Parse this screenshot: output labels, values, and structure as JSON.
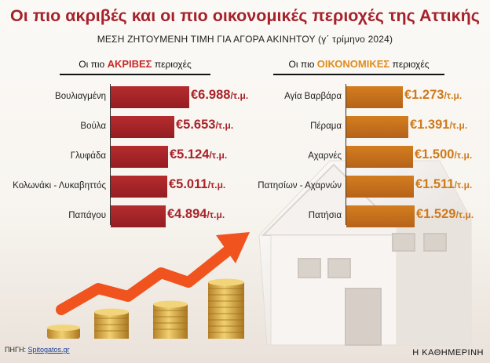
{
  "title": "Οι πιο ακριβές και οι πιο οικονομικές περιοχές της Αττικής",
  "subtitle": "ΜΕΣΗ ΖΗΤΟΥΜΕΝΗ ΤΙΜΗ ΓΙΑ ΑΓΟΡΑ ΑΚΙΝΗΤΟΥ (γ΄ τρίμηνο 2024)",
  "left_header": {
    "prefix": "Οι πιο ",
    "highlight": "ΑΚΡΙΒΕΣ",
    "suffix": " περιοχές"
  },
  "right_header": {
    "prefix": "Οι πιο ",
    "highlight": "ΟΙΚΟΝΟΜΙΚΕΣ",
    "suffix": " περιοχές"
  },
  "unit": "/τ.μ.",
  "footer": {
    "source_label": "ΠΗΓΗ: ",
    "source_link": "Spitogatos.gr",
    "brand": "Η ΚΑΘΗΜΕΡΙΝΗ"
  },
  "colors": {
    "red": "#a5222b",
    "orange": "#d47d1f",
    "arrow": "#f0531e"
  },
  "illustration": [
    "coin-stacks",
    "growth-arrow",
    "house"
  ],
  "chart_data": [
    {
      "type": "bar",
      "orientation": "horizontal",
      "categories": [
        "Βουλιαγμένη",
        "Βούλα",
        "Γλυφάδα",
        "Κολωνάκι - Λυκαβηττός",
        "Παπάγου"
      ],
      "values": [
        6988,
        5653,
        5124,
        5011,
        4894
      ],
      "labels": [
        "€6.988",
        "€5.653",
        "€5.124",
        "€5.011",
        "€4.894"
      ],
      "xlim": [
        0,
        7000
      ],
      "color": "#a5222b"
    },
    {
      "type": "bar",
      "orientation": "horizontal",
      "categories": [
        "Αγία Βαρβάρα",
        "Πέραμα",
        "Αχαρνές",
        "Πατησίων - Αχαρνών",
        "Πατήσια"
      ],
      "values": [
        1273,
        1391,
        1500,
        1511,
        1529
      ],
      "labels": [
        "€1.273",
        "€1.391",
        "€1.500",
        "€1.511",
        "€1.529"
      ],
      "xlim": [
        0,
        1530
      ],
      "color": "#d47d1f"
    }
  ]
}
